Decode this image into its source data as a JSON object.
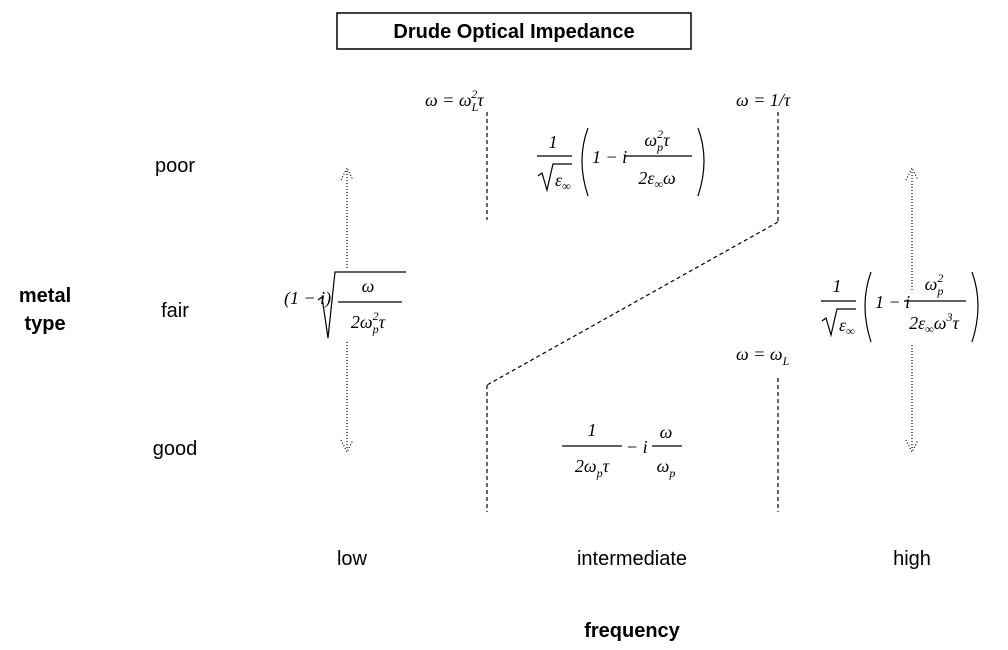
{
  "title": "Drude Optical Impedance",
  "y_axis": {
    "label_lines": [
      "metal",
      "type"
    ],
    "levels": [
      "poor",
      "fair",
      "good"
    ]
  },
  "x_axis": {
    "label": "frequency",
    "levels": [
      "low",
      "intermediate",
      "high"
    ]
  },
  "formulas": [
    {
      "parts": [
        "ω = ω",
        "L",
        "2",
        "τ"
      ]
    },
    {
      "parts": [
        "ω = 1/τ"
      ]
    },
    {
      "parts": [
        "ω = ω",
        "L"
      ]
    },
    {
      "parts": [
        "1",
        "ε",
        "∞",
        "1 − i",
        "ω",
        "p",
        "2",
        "τ",
        "2ε",
        "∞",
        "ω"
      ]
    },
    {
      "parts": [
        "(1 − i)",
        "ω",
        "2ω",
        "p",
        "2",
        "τ"
      ]
    },
    {
      "parts": [
        "1",
        "ε",
        "∞",
        "1 − i",
        "ω",
        "p",
        "2",
        "2ε",
        "∞",
        "ω",
        "3",
        "τ"
      ]
    },
    {
      "parts": [
        "1",
        "2ω",
        "p",
        "τ",
        "− i",
        "ω",
        "ω",
        "p"
      ]
    }
  ]
}
